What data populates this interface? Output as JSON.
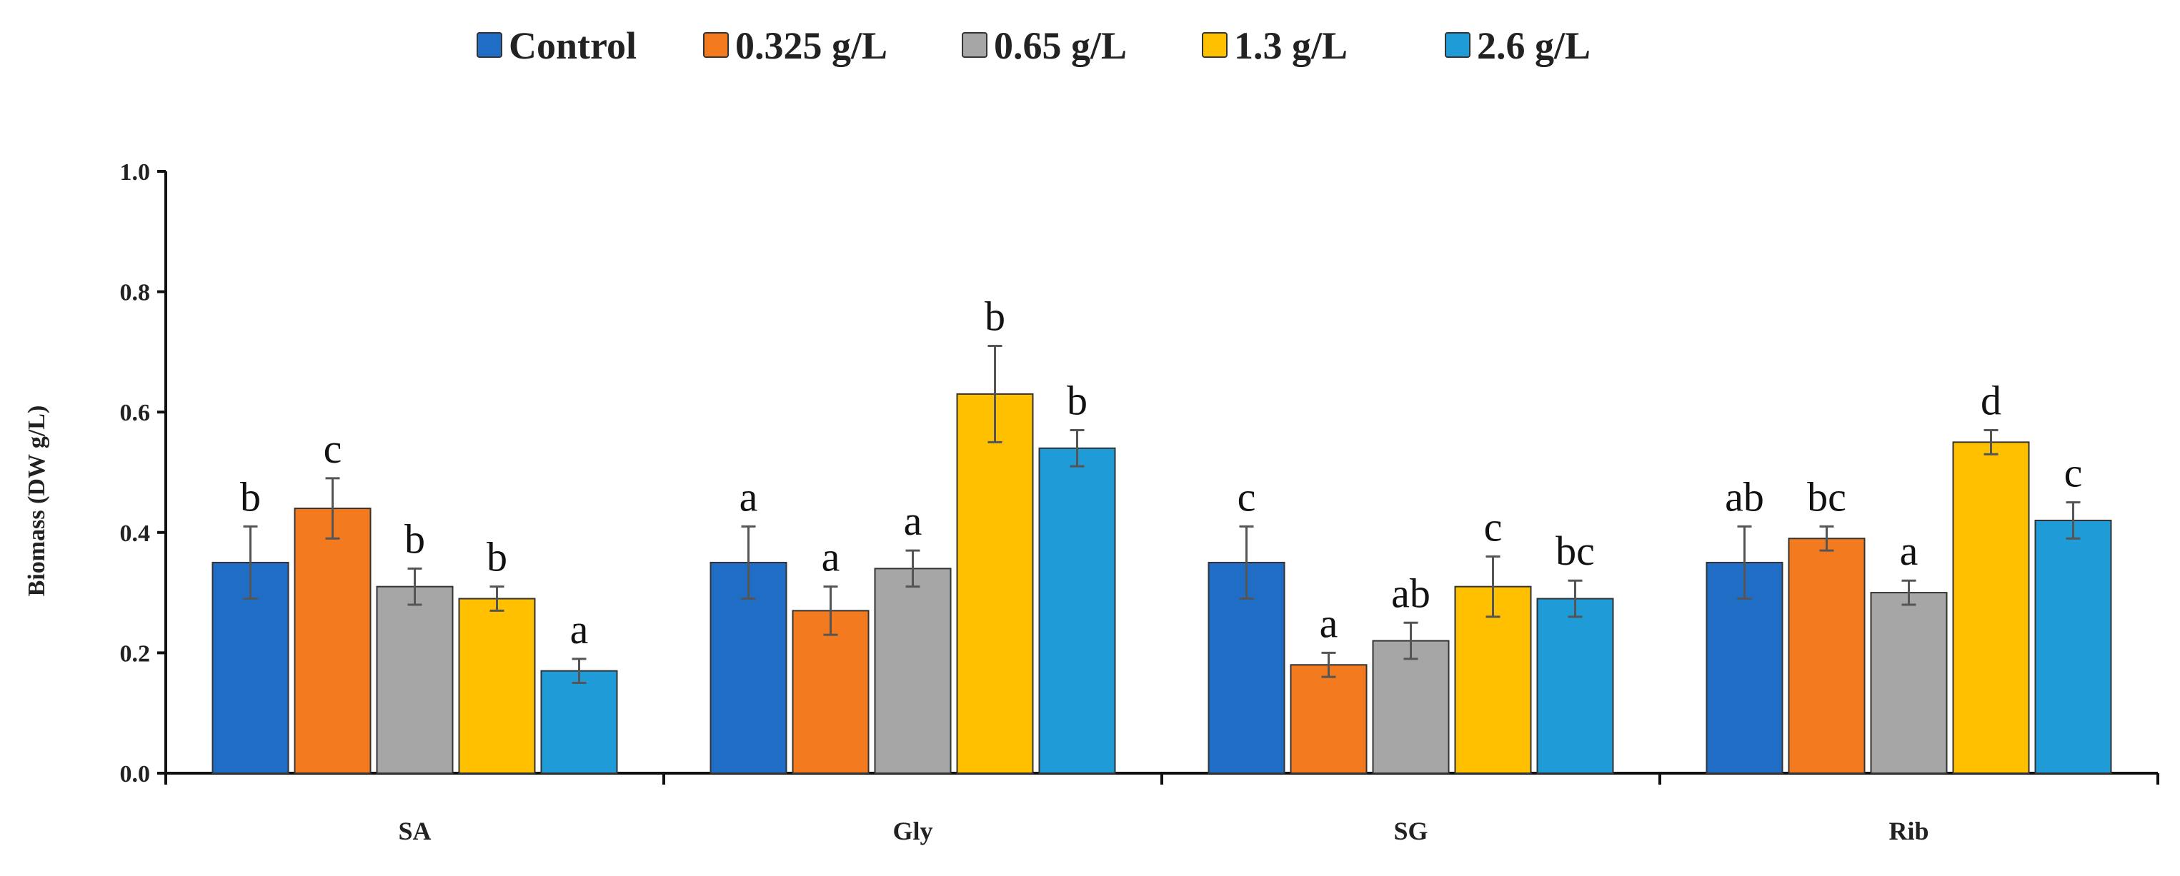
{
  "chart_data": {
    "type": "bar",
    "title": "",
    "xlabel": "",
    "ylabel": "Biomass (DW  g/L)",
    "ylim": [
      0,
      1.0
    ],
    "yticks": [
      "0.0",
      "0.2",
      "0.4",
      "0.6",
      "0.8",
      "1.0"
    ],
    "categories": [
      "SA",
      "Gly",
      "SG",
      "Rib"
    ],
    "legend_position": "top-center",
    "series": [
      {
        "name": "Control",
        "color": "#1f6dc5",
        "values": [
          0.35,
          0.35,
          0.35,
          0.35
        ],
        "errors": [
          0.06,
          0.06,
          0.06,
          0.06
        ],
        "labels": [
          "b",
          "a",
          "c",
          "ab"
        ]
      },
      {
        "name": "0.325 g/L",
        "color": "#f47a20",
        "values": [
          0.44,
          0.27,
          0.18,
          0.39
        ],
        "errors": [
          0.05,
          0.04,
          0.02,
          0.02
        ],
        "labels": [
          "c",
          "a",
          "a",
          "bc"
        ]
      },
      {
        "name": "0.65 g/L",
        "color": "#a6a6a6",
        "values": [
          0.31,
          0.34,
          0.22,
          0.3
        ],
        "errors": [
          0.03,
          0.03,
          0.03,
          0.02
        ],
        "labels": [
          "b",
          "a",
          "ab",
          "a"
        ]
      },
      {
        "name": "1.3 g/L",
        "color": "#ffc000",
        "values": [
          0.29,
          0.63,
          0.31,
          0.55
        ],
        "errors": [
          0.02,
          0.08,
          0.05,
          0.02
        ],
        "labels": [
          "b",
          "b",
          "c",
          "d"
        ]
      },
      {
        "name": "2.6 g/L",
        "color": "#1f9bd7",
        "values": [
          0.17,
          0.54,
          0.29,
          0.42
        ],
        "errors": [
          0.02,
          0.03,
          0.03,
          0.03
        ],
        "labels": [
          "a",
          "b",
          "bc",
          "c"
        ]
      }
    ]
  }
}
